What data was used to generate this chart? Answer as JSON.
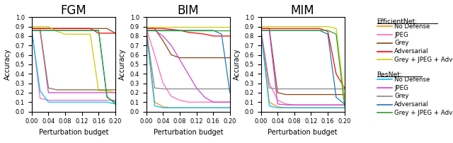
{
  "x": [
    0.0,
    0.02,
    0.04,
    0.06,
    0.08,
    0.1,
    0.12,
    0.14,
    0.16,
    0.18,
    0.2
  ],
  "titles": [
    "FGM",
    "BIM",
    "MIM"
  ],
  "xlabel": "Perturbation budget",
  "ylabel": "Accuracy",
  "ylim": [
    0.0,
    1.0
  ],
  "xlim": [
    0.0,
    0.2
  ],
  "efficientnet": {
    "no_defense": {
      "color": "#ff8c00",
      "label": "No Defense"
    },
    "jpeg": {
      "color": "#ff69b4",
      "label": "JPEG"
    },
    "grey": {
      "color": "#8b4513",
      "label": "Grey"
    },
    "adversarial": {
      "color": "#ff0000",
      "label": "Adversarial"
    },
    "grey_jpeg_adv": {
      "color": "#cccc00",
      "label": "Grey + JPEG + Adversarial"
    }
  },
  "resnet": {
    "no_defense": {
      "color": "#00bfff",
      "label": "No Defense"
    },
    "jpeg": {
      "color": "#cc44cc",
      "label": "JPEG"
    },
    "grey": {
      "color": "#888888",
      "label": "Grey"
    },
    "adversarial": {
      "color": "#1f77b4",
      "label": "Adversarial"
    },
    "grey_jpeg_adv": {
      "color": "#2ca02c",
      "label": "Grey + JPEG + Adversarial"
    }
  },
  "fgm": {
    "eff_no_defense": [
      0.88,
      0.88,
      0.25,
      0.23,
      0.23,
      0.23,
      0.23,
      0.23,
      0.23,
      0.23,
      0.23
    ],
    "eff_jpeg": [
      0.88,
      0.14,
      0.12,
      0.12,
      0.12,
      0.12,
      0.12,
      0.12,
      0.12,
      0.12,
      0.12
    ],
    "eff_grey": [
      0.88,
      0.88,
      0.88,
      0.88,
      0.88,
      0.88,
      0.88,
      0.88,
      0.88,
      0.88,
      0.83
    ],
    "eff_adversarial": [
      0.88,
      0.88,
      0.88,
      0.88,
      0.88,
      0.88,
      0.88,
      0.88,
      0.83,
      0.83,
      0.83
    ],
    "eff_grey_jpeg_adv": [
      0.9,
      0.9,
      0.9,
      0.85,
      0.82,
      0.82,
      0.82,
      0.82,
      0.22,
      0.22,
      0.2
    ],
    "res_no_defense": [
      0.86,
      0.22,
      0.1,
      0.1,
      0.1,
      0.1,
      0.1,
      0.1,
      0.1,
      0.1,
      0.08
    ],
    "res_jpeg": [
      0.86,
      0.86,
      0.2,
      0.2,
      0.2,
      0.2,
      0.2,
      0.2,
      0.2,
      0.2,
      0.2
    ],
    "res_grey": [
      0.86,
      0.86,
      0.25,
      0.23,
      0.23,
      0.23,
      0.23,
      0.23,
      0.23,
      0.23,
      0.23
    ],
    "res_adversarial": [
      0.86,
      0.86,
      0.86,
      0.86,
      0.86,
      0.86,
      0.86,
      0.86,
      0.86,
      0.15,
      0.1
    ],
    "res_grey_jpeg_adv": [
      0.86,
      0.86,
      0.86,
      0.86,
      0.86,
      0.86,
      0.86,
      0.86,
      0.86,
      0.16,
      0.08
    ]
  },
  "bim": {
    "eff_no_defense": [
      0.88,
      0.1,
      0.05,
      0.04,
      0.04,
      0.04,
      0.04,
      0.04,
      0.04,
      0.04,
      0.04
    ],
    "eff_jpeg": [
      0.88,
      0.6,
      0.3,
      0.16,
      0.12,
      0.1,
      0.1,
      0.1,
      0.1,
      0.1,
      0.1
    ],
    "eff_grey": [
      0.88,
      0.88,
      0.75,
      0.6,
      0.57,
      0.57,
      0.57,
      0.57,
      0.57,
      0.57,
      0.57
    ],
    "eff_adversarial": [
      0.88,
      0.88,
      0.88,
      0.87,
      0.86,
      0.84,
      0.83,
      0.82,
      0.8,
      0.8,
      0.8
    ],
    "eff_grey_jpeg_adv": [
      0.9,
      0.9,
      0.9,
      0.9,
      0.9,
      0.9,
      0.9,
      0.9,
      0.9,
      0.9,
      0.9
    ],
    "res_no_defense": [
      0.86,
      0.06,
      0.04,
      0.04,
      0.04,
      0.04,
      0.04,
      0.04,
      0.04,
      0.04,
      0.04
    ],
    "res_jpeg": [
      0.86,
      0.86,
      0.8,
      0.7,
      0.55,
      0.4,
      0.25,
      0.15,
      0.1,
      0.1,
      0.1
    ],
    "res_grey": [
      0.86,
      0.25,
      0.24,
      0.24,
      0.24,
      0.24,
      0.24,
      0.24,
      0.24,
      0.24,
      0.24
    ],
    "res_adversarial": [
      0.86,
      0.86,
      0.86,
      0.86,
      0.86,
      0.86,
      0.86,
      0.86,
      0.86,
      0.82,
      0.2
    ],
    "res_grey_jpeg_adv": [
      0.86,
      0.86,
      0.86,
      0.86,
      0.86,
      0.86,
      0.86,
      0.86,
      0.86,
      0.86,
      0.86
    ]
  },
  "mim": {
    "eff_no_defense": [
      0.88,
      0.1,
      0.05,
      0.04,
      0.04,
      0.04,
      0.04,
      0.04,
      0.04,
      0.04,
      0.04
    ],
    "eff_jpeg": [
      0.88,
      0.3,
      0.12,
      0.08,
      0.07,
      0.07,
      0.07,
      0.07,
      0.07,
      0.07,
      0.07
    ],
    "eff_grey": [
      0.88,
      0.88,
      0.2,
      0.18,
      0.18,
      0.18,
      0.18,
      0.18,
      0.18,
      0.18,
      0.18
    ],
    "eff_adversarial": [
      0.88,
      0.88,
      0.88,
      0.88,
      0.88,
      0.88,
      0.88,
      0.88,
      0.85,
      0.4,
      0.25
    ],
    "eff_grey_jpeg_adv": [
      0.9,
      0.9,
      0.9,
      0.9,
      0.9,
      0.9,
      0.9,
      0.9,
      0.9,
      0.88,
      0.14
    ],
    "res_no_defense": [
      0.86,
      0.06,
      0.04,
      0.04,
      0.04,
      0.04,
      0.04,
      0.04,
      0.04,
      0.04,
      0.04
    ],
    "res_jpeg": [
      0.86,
      0.86,
      0.08,
      0.07,
      0.07,
      0.07,
      0.07,
      0.07,
      0.07,
      0.07,
      0.07
    ],
    "res_grey": [
      0.86,
      0.25,
      0.24,
      0.24,
      0.24,
      0.24,
      0.24,
      0.24,
      0.24,
      0.24,
      0.24
    ],
    "res_adversarial": [
      0.86,
      0.86,
      0.86,
      0.86,
      0.86,
      0.86,
      0.86,
      0.86,
      0.82,
      0.15,
      0.08
    ],
    "res_grey_jpeg_adv": [
      0.86,
      0.86,
      0.86,
      0.86,
      0.86,
      0.86,
      0.86,
      0.86,
      0.86,
      0.82,
      0.06
    ]
  }
}
